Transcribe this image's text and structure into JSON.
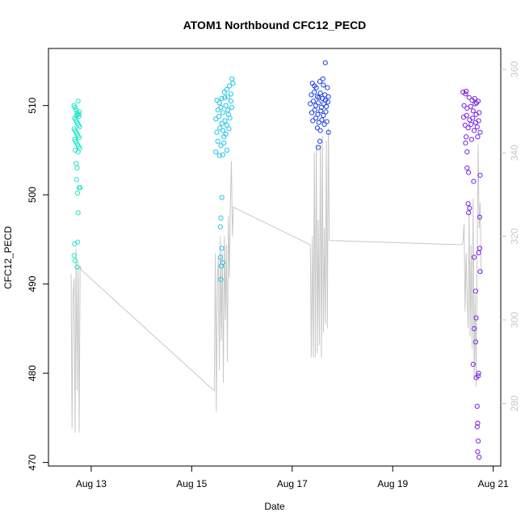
{
  "chart_data": {
    "type": "scatter",
    "title": "ATOM1 Northbound CFC12_PECD",
    "xlabel": "Date",
    "ylabel": "CFC12_PECD",
    "y2label": "",
    "xlim": [
      12.15,
      21.15
    ],
    "ylim": [
      469.6,
      516.4
    ],
    "y2lim": [
      265.0,
      365.0
    ],
    "x_ticks": [
      {
        "value": 13,
        "label": "Aug 13"
      },
      {
        "value": 15,
        "label": "Aug 15"
      },
      {
        "value": 17,
        "label": "Aug 17"
      },
      {
        "value": 19,
        "label": "Aug 19"
      },
      {
        "value": 21,
        "label": "Aug 21"
      }
    ],
    "y_ticks": [
      470,
      480,
      490,
      500,
      510
    ],
    "y2_ticks": [
      280,
      300,
      320,
      340,
      360
    ],
    "grid": false,
    "legend": "none",
    "series": [
      {
        "color": "#1ee6c8",
        "x_range": [
          12.65,
          12.78
        ],
        "points": [
          [
            12.66,
            510.0
          ],
          [
            12.68,
            509.8
          ],
          [
            12.7,
            509.5
          ],
          [
            12.72,
            509.2
          ],
          [
            12.74,
            509.0
          ],
          [
            12.76,
            508.8
          ],
          [
            12.67,
            508.6
          ],
          [
            12.69,
            508.4
          ],
          [
            12.71,
            508.2
          ],
          [
            12.73,
            508.0
          ],
          [
            12.75,
            507.8
          ],
          [
            12.77,
            507.6
          ],
          [
            12.66,
            507.4
          ],
          [
            12.68,
            507.2
          ],
          [
            12.7,
            507.0
          ],
          [
            12.72,
            506.8
          ],
          [
            12.74,
            506.6
          ],
          [
            12.76,
            506.4
          ],
          [
            12.67,
            506.2
          ],
          [
            12.69,
            506.0
          ],
          [
            12.71,
            505.8
          ],
          [
            12.73,
            505.6
          ],
          [
            12.75,
            505.4
          ],
          [
            12.77,
            505.2
          ],
          [
            12.68,
            505.0
          ],
          [
            12.74,
            504.8
          ],
          [
            12.7,
            503.5
          ],
          [
            12.72,
            503.0
          ],
          [
            12.71,
            501.7
          ],
          [
            12.76,
            500.8
          ],
          [
            12.78,
            500.8
          ],
          [
            12.73,
            500.2
          ],
          [
            12.74,
            498.0
          ],
          [
            12.67,
            494.5
          ],
          [
            12.73,
            494.7
          ],
          [
            12.66,
            493.2
          ],
          [
            12.68,
            492.6
          ],
          [
            12.72,
            491.9
          ],
          [
            12.74,
            510.5
          ],
          [
            12.76,
            509.3
          ],
          [
            12.75,
            509.0
          ],
          [
            12.71,
            508.9
          ]
        ]
      },
      {
        "color": "#20c4e8",
        "x_range": [
          15.45,
          15.83
        ],
        "points": [
          [
            15.5,
            510.6
          ],
          [
            15.55,
            510.3
          ],
          [
            15.6,
            510.8
          ],
          [
            15.65,
            511.5
          ],
          [
            15.7,
            511.8
          ],
          [
            15.75,
            512.2
          ],
          [
            15.8,
            513.0
          ],
          [
            15.82,
            512.5
          ],
          [
            15.52,
            509.5
          ],
          [
            15.58,
            509.8
          ],
          [
            15.62,
            509.2
          ],
          [
            15.68,
            510.0
          ],
          [
            15.72,
            509.5
          ],
          [
            15.78,
            510.5
          ],
          [
            15.48,
            508.5
          ],
          [
            15.54,
            508.8
          ],
          [
            15.6,
            508.0
          ],
          [
            15.66,
            508.3
          ],
          [
            15.7,
            507.8
          ],
          [
            15.76,
            508.6
          ],
          [
            15.5,
            507.0
          ],
          [
            15.56,
            507.5
          ],
          [
            15.62,
            507.2
          ],
          [
            15.68,
            506.8
          ],
          [
            15.74,
            507.4
          ],
          [
            15.52,
            506.0
          ],
          [
            15.58,
            505.5
          ],
          [
            15.64,
            505.8
          ],
          [
            15.7,
            505.0
          ],
          [
            15.48,
            504.8
          ],
          [
            15.55,
            504.4
          ],
          [
            15.62,
            504.5
          ],
          [
            15.6,
            499.7
          ],
          [
            15.58,
            497.4
          ],
          [
            15.57,
            496.4
          ],
          [
            15.6,
            494.0
          ],
          [
            15.57,
            493.0
          ],
          [
            15.62,
            492.4
          ],
          [
            15.59,
            492.0
          ],
          [
            15.58,
            490.5
          ],
          [
            15.72,
            511.0
          ],
          [
            15.78,
            511.3
          ],
          [
            15.66,
            510.9
          ],
          [
            15.73,
            509.0
          ],
          [
            15.64,
            506.5
          ],
          [
            15.8,
            509.8
          ]
        ]
      },
      {
        "color": "#1f3fe6",
        "x_range": [
          17.35,
          17.73
        ],
        "points": [
          [
            17.4,
            512.5
          ],
          [
            17.48,
            512.0
          ],
          [
            17.55,
            512.7
          ],
          [
            17.62,
            512.3
          ],
          [
            17.7,
            512.0
          ],
          [
            17.66,
            514.8
          ],
          [
            17.38,
            511.2
          ],
          [
            17.44,
            511.5
          ],
          [
            17.5,
            511.0
          ],
          [
            17.56,
            511.4
          ],
          [
            17.6,
            510.8
          ],
          [
            17.65,
            511.2
          ],
          [
            17.72,
            511.0
          ],
          [
            17.36,
            510.2
          ],
          [
            17.42,
            510.5
          ],
          [
            17.47,
            510.0
          ],
          [
            17.52,
            510.3
          ],
          [
            17.58,
            509.8
          ],
          [
            17.63,
            510.2
          ],
          [
            17.68,
            509.9
          ],
          [
            17.71,
            510.4
          ],
          [
            17.39,
            509.2
          ],
          [
            17.45,
            509.5
          ],
          [
            17.51,
            509.0
          ],
          [
            17.57,
            509.4
          ],
          [
            17.62,
            508.9
          ],
          [
            17.67,
            509.3
          ],
          [
            17.41,
            508.3
          ],
          [
            17.47,
            508.6
          ],
          [
            17.53,
            508.1
          ],
          [
            17.59,
            508.4
          ],
          [
            17.64,
            507.9
          ],
          [
            17.69,
            508.2
          ],
          [
            17.5,
            507.5
          ],
          [
            17.56,
            507.2
          ],
          [
            17.72,
            507.0
          ],
          [
            17.55,
            506.0
          ],
          [
            17.52,
            505.3
          ],
          [
            17.44,
            512.2
          ],
          [
            17.61,
            513.0
          ],
          [
            17.53,
            510.9
          ],
          [
            17.66,
            510.6
          ]
        ]
      },
      {
        "color": "#7a22e6",
        "x_range": [
          20.38,
          20.75
        ],
        "points": [
          [
            20.4,
            511.5
          ],
          [
            20.45,
            511.3
          ],
          [
            20.52,
            510.9
          ],
          [
            20.58,
            510.6
          ],
          [
            20.64,
            510.2
          ],
          [
            20.7,
            510.5
          ],
          [
            20.42,
            510.0
          ],
          [
            20.48,
            509.7
          ],
          [
            20.55,
            509.9
          ],
          [
            20.6,
            509.4
          ],
          [
            20.66,
            509.0
          ],
          [
            20.72,
            509.2
          ],
          [
            20.41,
            508.7
          ],
          [
            20.47,
            508.9
          ],
          [
            20.53,
            508.4
          ],
          [
            20.59,
            508.6
          ],
          [
            20.65,
            508.1
          ],
          [
            20.71,
            508.3
          ],
          [
            20.44,
            507.8
          ],
          [
            20.5,
            507.5
          ],
          [
            20.56,
            507.9
          ],
          [
            20.62,
            507.2
          ],
          [
            20.68,
            507.6
          ],
          [
            20.74,
            507.0
          ],
          [
            20.46,
            506.5
          ],
          [
            20.57,
            506.2
          ],
          [
            20.69,
            506.5
          ],
          [
            20.45,
            505.8
          ],
          [
            20.48,
            504.8
          ],
          [
            20.48,
            503.0
          ],
          [
            20.51,
            502.5
          ],
          [
            20.61,
            501.5
          ],
          [
            20.74,
            502.2
          ],
          [
            20.5,
            499.0
          ],
          [
            20.53,
            498.5
          ],
          [
            20.51,
            498.0
          ],
          [
            20.73,
            497.5
          ],
          [
            20.73,
            494.0
          ],
          [
            20.71,
            493.5
          ],
          [
            20.62,
            493.0
          ],
          [
            20.74,
            491.4
          ],
          [
            20.65,
            489.2
          ],
          [
            20.66,
            486.2
          ],
          [
            20.62,
            485.0
          ],
          [
            20.65,
            483.5
          ],
          [
            20.6,
            481.0
          ],
          [
            20.71,
            480.0
          ],
          [
            20.7,
            479.7
          ],
          [
            20.66,
            479.5
          ],
          [
            20.68,
            476.3
          ],
          [
            20.69,
            474.4
          ],
          [
            20.68,
            474.0
          ],
          [
            20.7,
            472.4
          ],
          [
            20.69,
            471.2
          ],
          [
            20.72,
            470.6
          ],
          [
            20.46,
            511.6
          ],
          [
            20.63,
            510.8
          ],
          [
            20.67,
            510.3
          ]
        ]
      }
    ],
    "right_axis_line": {
      "color": "#c8c8c8",
      "x": [
        12.6,
        12.62,
        12.64,
        12.66,
        12.68,
        12.7,
        12.72,
        12.74,
        12.76,
        12.78,
        12.8,
        15.45,
        15.47,
        15.49,
        15.51,
        15.53,
        15.55,
        15.57,
        15.59,
        15.61,
        15.63,
        15.65,
        15.67,
        15.69,
        15.71,
        15.73,
        15.75,
        15.77,
        15.79,
        15.81,
        15.83,
        17.36,
        17.38,
        17.4,
        17.42,
        17.44,
        17.46,
        17.48,
        17.5,
        17.52,
        17.54,
        17.56,
        17.58,
        17.6,
        17.62,
        17.64,
        17.66,
        17.68,
        17.7,
        17.72,
        17.74,
        20.38,
        20.4,
        20.42,
        20.44,
        20.46,
        20.48,
        20.5,
        20.52,
        20.54,
        20.56,
        20.58,
        20.6,
        20.62,
        20.64,
        20.66,
        20.68,
        20.7,
        20.72,
        20.74,
        20.76
      ],
      "y": [
        311,
        274,
        306,
        310,
        273,
        317,
        283,
        314,
        273,
        313,
        312,
        283,
        316,
        278,
        310,
        315,
        288,
        320,
        295,
        316,
        285,
        320,
        300,
        318,
        290,
        325,
        310,
        328,
        338,
        320,
        327,
        318,
        291,
        320,
        291,
        340,
        291,
        342,
        292,
        324,
        294,
        342,
        291,
        344,
        297,
        322,
        299,
        343,
        298,
        346,
        319,
        318,
        319,
        323,
        302,
        316,
        306,
        298,
        326,
        296,
        318,
        293,
        329,
        286,
        306,
        284,
        316,
        342,
        322,
        328,
        311
      ]
    }
  }
}
